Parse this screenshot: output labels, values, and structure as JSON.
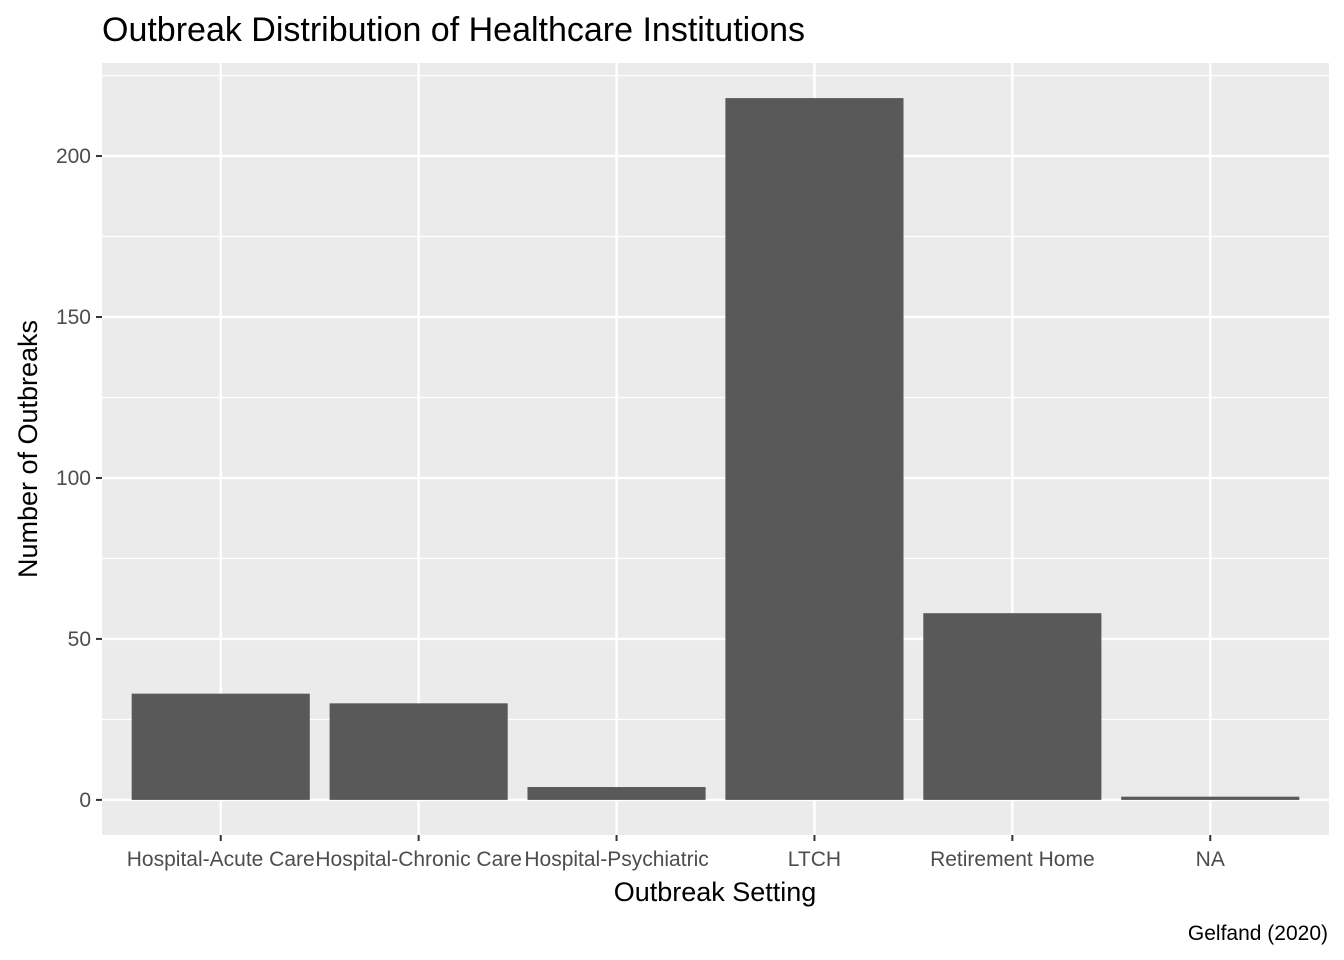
{
  "chart_data": {
    "type": "bar",
    "title": "Outbreak Distribution of Healthcare Institutions",
    "xlabel": "Outbreak Setting",
    "ylabel": "Number of Outbreaks",
    "caption": "Gelfand (2020)",
    "categories": [
      "Hospital-Acute Care",
      "Hospital-Chronic Care",
      "Hospital-Psychiatric",
      "LTCH",
      "Retirement Home",
      "NA"
    ],
    "values": [
      33,
      30,
      4,
      218,
      58,
      1
    ],
    "yticks": [
      0,
      50,
      100,
      150,
      200
    ],
    "ylim": [
      -10.9,
      228.9
    ],
    "grid": true,
    "legend": "none",
    "colors": {
      "bar": "#595959",
      "panel": "#ebebeb",
      "grid": "#ffffff",
      "tick_text": "#4d4d4d",
      "tick_mark": "#333333"
    }
  }
}
